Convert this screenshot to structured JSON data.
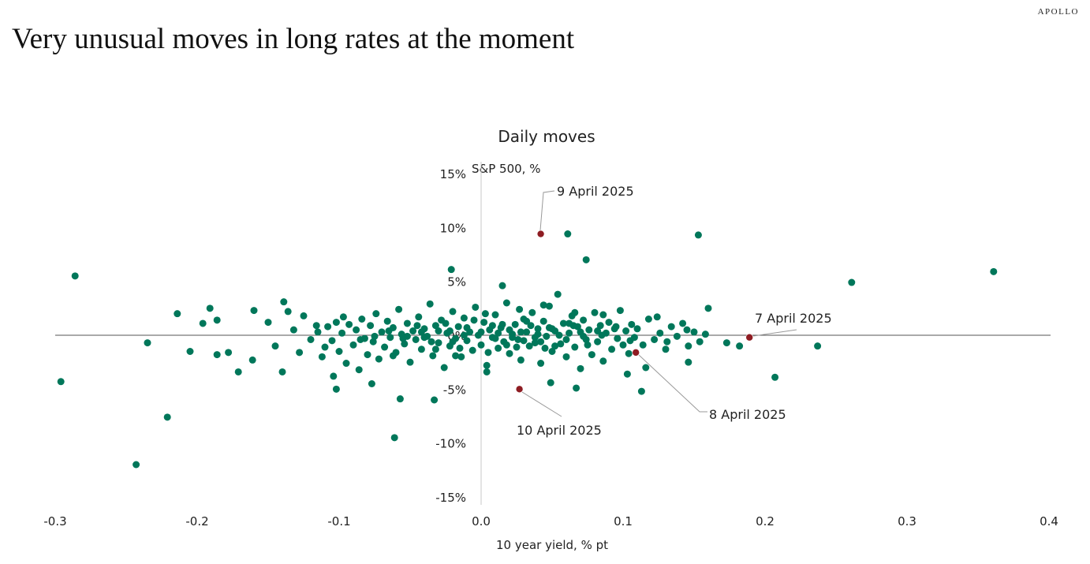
{
  "header": {
    "title": "Very unusual moves in long rates at the moment",
    "logo": "APOLLO"
  },
  "chart_data": {
    "type": "scatter",
    "title": "Daily moves",
    "xlabel": "10 year yield, % pt",
    "ylabel": "S&P 500, %",
    "xlim": [
      -0.3,
      0.4
    ],
    "ylim": [
      -15,
      15
    ],
    "x_ticks": [
      {
        "v": -0.3,
        "label": "-0.3"
      },
      {
        "v": -0.2,
        "label": "-0.2"
      },
      {
        "v": -0.1,
        "label": "-0.1"
      },
      {
        "v": 0.0,
        "label": "0.0"
      },
      {
        "v": 0.1,
        "label": "0.1"
      },
      {
        "v": 0.2,
        "label": "0.2"
      },
      {
        "v": 0.3,
        "label": "0.3"
      },
      {
        "v": 0.4,
        "label": "0.4"
      }
    ],
    "y_ticks": [
      {
        "v": 15,
        "label": "15%"
      },
      {
        "v": 10,
        "label": "10%"
      },
      {
        "v": 5,
        "label": "5%"
      },
      {
        "v": 0,
        "label": "0%"
      },
      {
        "v": -5,
        "label": "-5%"
      },
      {
        "v": -10,
        "label": "-10%"
      },
      {
        "v": -15,
        "label": "-15%"
      }
    ],
    "colors": {
      "point": "#00775a",
      "highlight": "#8e1c22",
      "axis": "#555555",
      "yaxis": "#c8c8c8"
    },
    "highlighted": [
      {
        "label": "9 April 2025",
        "x": 0.042,
        "y": 9.4
      },
      {
        "label": "10 April 2025",
        "x": 0.027,
        "y": -5.0
      },
      {
        "label": "8 April 2025",
        "x": 0.109,
        "y": -1.6
      },
      {
        "label": "7 April 2025",
        "x": 0.189,
        "y": -0.2
      }
    ],
    "points": [
      [
        -0.286,
        5.5
      ],
      [
        -0.296,
        -4.3
      ],
      [
        -0.243,
        -12.0
      ],
      [
        -0.221,
        -7.6
      ],
      [
        -0.235,
        -0.7
      ],
      [
        -0.214,
        2.0
      ],
      [
        -0.205,
        -1.5
      ],
      [
        -0.191,
        2.5
      ],
      [
        -0.196,
        1.1
      ],
      [
        -0.186,
        1.4
      ],
      [
        -0.186,
        -1.8
      ],
      [
        -0.178,
        -1.6
      ],
      [
        -0.171,
        -3.4
      ],
      [
        -0.16,
        2.3
      ],
      [
        -0.161,
        -2.3
      ],
      [
        -0.139,
        3.1
      ],
      [
        -0.136,
        2.2
      ],
      [
        -0.14,
        -3.4
      ],
      [
        -0.061,
        -9.5
      ],
      [
        -0.057,
        -5.9
      ],
      [
        -0.033,
        -6.0
      ],
      [
        -0.021,
        6.1
      ],
      [
        0.015,
        4.6
      ],
      [
        0.061,
        9.4
      ],
      [
        0.074,
        7.0
      ],
      [
        0.153,
        9.3
      ],
      [
        0.16,
        2.5
      ],
      [
        0.261,
        4.9
      ],
      [
        0.361,
        5.9
      ],
      [
        0.237,
        -1.0
      ],
      [
        0.207,
        -3.9
      ],
      [
        0.113,
        -5.2
      ],
      [
        0.067,
        -4.9
      ],
      [
        0.049,
        -4.4
      ],
      [
        0.182,
        -1.0
      ],
      [
        0.173,
        -0.7
      ],
      [
        0.146,
        -2.5
      ],
      [
        0.103,
        -3.6
      ],
      [
        0.116,
        -3.0
      ],
      [
        -0.077,
        -4.5
      ],
      [
        -0.102,
        -5.0
      ],
      [
        0.004,
        -3.4
      ],
      [
        -0.15,
        1.2
      ],
      [
        -0.145,
        -1.0
      ],
      [
        -0.132,
        0.5
      ],
      [
        -0.128,
        -1.6
      ],
      [
        -0.125,
        1.8
      ],
      [
        -0.12,
        -0.4
      ],
      [
        -0.116,
        0.9
      ],
      [
        -0.112,
        -2.0
      ],
      [
        -0.108,
        0.8
      ],
      [
        -0.105,
        -0.5
      ],
      [
        -0.102,
        1.2
      ],
      [
        -0.1,
        -1.5
      ],
      [
        -0.098,
        0.2
      ],
      [
        -0.095,
        -2.6
      ],
      [
        -0.093,
        1.0
      ],
      [
        -0.09,
        -0.9
      ],
      [
        -0.088,
        0.5
      ],
      [
        -0.086,
        -3.2
      ],
      [
        -0.084,
        1.5
      ],
      [
        -0.082,
        -0.3
      ],
      [
        -0.08,
        -1.8
      ],
      [
        -0.078,
        0.9
      ],
      [
        -0.076,
        -0.6
      ],
      [
        -0.074,
        2.0
      ],
      [
        -0.072,
        -2.2
      ],
      [
        -0.07,
        0.3
      ],
      [
        -0.068,
        -1.1
      ],
      [
        -0.066,
        1.3
      ],
      [
        -0.064,
        -0.2
      ],
      [
        -0.062,
        0.7
      ],
      [
        -0.06,
        -1.6
      ],
      [
        -0.058,
        2.4
      ],
      [
        -0.056,
        0.1
      ],
      [
        -0.054,
        -0.8
      ],
      [
        -0.052,
        1.1
      ],
      [
        -0.05,
        -2.5
      ],
      [
        -0.048,
        0.4
      ],
      [
        -0.046,
        -0.4
      ],
      [
        -0.044,
        1.7
      ],
      [
        -0.042,
        -1.3
      ],
      [
        -0.04,
        0.6
      ],
      [
        -0.038,
        -0.1
      ],
      [
        -0.036,
        2.9
      ],
      [
        -0.034,
        -1.9
      ],
      [
        -0.032,
        0.9
      ],
      [
        -0.03,
        -0.7
      ],
      [
        -0.028,
        1.4
      ],
      [
        -0.026,
        -3.0
      ],
      [
        -0.024,
        0.2
      ],
      [
        -0.022,
        -1.0
      ],
      [
        -0.02,
        2.2
      ],
      [
        -0.018,
        -0.3
      ],
      [
        -0.016,
        0.8
      ],
      [
        -0.014,
        -2.0
      ],
      [
        -0.012,
        1.6
      ],
      [
        -0.01,
        -0.5
      ],
      [
        -0.008,
        0.3
      ],
      [
        -0.006,
        -1.4
      ],
      [
        -0.004,
        2.6
      ],
      [
        -0.002,
        0.0
      ],
      [
        0.0,
        -0.9
      ],
      [
        0.002,
        1.2
      ],
      [
        0.004,
        -2.8
      ],
      [
        0.006,
        0.5
      ],
      [
        0.008,
        -0.2
      ],
      [
        0.01,
        1.9
      ],
      [
        0.012,
        -1.2
      ],
      [
        0.014,
        0.7
      ],
      [
        0.016,
        -0.6
      ],
      [
        0.018,
        3.0
      ],
      [
        0.02,
        -1.7
      ],
      [
        0.022,
        0.1
      ],
      [
        0.024,
        1.0
      ],
      [
        0.026,
        -0.4
      ],
      [
        0.028,
        -2.3
      ],
      [
        0.03,
        1.5
      ],
      [
        0.032,
        0.3
      ],
      [
        0.034,
        -1.0
      ],
      [
        0.036,
        2.1
      ],
      [
        0.038,
        -0.7
      ],
      [
        0.04,
        0.6
      ],
      [
        0.042,
        -2.6
      ],
      [
        0.044,
        1.3
      ],
      [
        0.046,
        -0.1
      ],
      [
        0.048,
        2.7
      ],
      [
        0.05,
        -1.5
      ],
      [
        0.052,
        0.4
      ],
      [
        0.054,
        3.8
      ],
      [
        0.056,
        -0.8
      ],
      [
        0.058,
        1.1
      ],
      [
        0.06,
        -2.0
      ],
      [
        0.062,
        0.2
      ],
      [
        0.064,
        1.8
      ],
      [
        0.066,
        -1.1
      ],
      [
        0.068,
        0.8
      ],
      [
        0.07,
        -3.1
      ],
      [
        0.072,
        1.4
      ],
      [
        0.074,
        -0.4
      ],
      [
        0.076,
        0.5
      ],
      [
        0.078,
        -1.8
      ],
      [
        0.08,
        2.1
      ],
      [
        0.082,
        -0.6
      ],
      [
        0.084,
        0.9
      ],
      [
        0.086,
        -2.4
      ],
      [
        0.088,
        0.2
      ],
      [
        0.09,
        1.2
      ],
      [
        0.092,
        -1.3
      ],
      [
        0.094,
        0.6
      ],
      [
        0.096,
        -0.3
      ],
      [
        0.098,
        2.3
      ],
      [
        0.1,
        -0.9
      ],
      [
        0.102,
        0.4
      ],
      [
        0.104,
        -1.7
      ],
      [
        0.106,
        1.0
      ],
      [
        0.108,
        -0.2
      ],
      [
        0.11,
        0.6
      ],
      [
        0.114,
        -0.9
      ],
      [
        0.118,
        1.5
      ],
      [
        0.122,
        -0.4
      ],
      [
        0.126,
        0.2
      ],
      [
        0.13,
        -1.3
      ],
      [
        0.134,
        0.8
      ],
      [
        0.138,
        -0.1
      ],
      [
        0.142,
        1.1
      ],
      [
        0.146,
        -1.0
      ],
      [
        0.15,
        0.3
      ],
      [
        0.154,
        -0.6
      ],
      [
        0.158,
        0.1
      ],
      [
        -0.04,
        -0.2
      ],
      [
        -0.03,
        0.4
      ],
      [
        -0.02,
        -0.6
      ],
      [
        -0.01,
        0.7
      ],
      [
        0.0,
        0.3
      ],
      [
        0.01,
        -0.3
      ],
      [
        0.02,
        0.5
      ],
      [
        0.03,
        -0.5
      ],
      [
        0.04,
        0.1
      ],
      [
        0.05,
        0.6
      ],
      [
        0.06,
        -0.4
      ],
      [
        0.07,
        0.3
      ],
      [
        0.015,
        1.0
      ],
      [
        0.025,
        -1.1
      ],
      [
        -0.015,
        -1.2
      ],
      [
        -0.025,
        1.1
      ],
      [
        0.005,
        -1.6
      ],
      [
        0.035,
        0.9
      ],
      [
        0.045,
        -1.2
      ],
      [
        0.055,
        0.0
      ],
      [
        -0.005,
        1.4
      ],
      [
        -0.035,
        -0.6
      ],
      [
        -0.045,
        0.9
      ],
      [
        -0.055,
        -0.3
      ],
      [
        -0.065,
        0.4
      ],
      [
        -0.075,
        -0.1
      ],
      [
        -0.085,
        -0.4
      ],
      [
        0.065,
        0.9
      ],
      [
        0.075,
        -0.9
      ],
      [
        0.085,
        0.0
      ],
      [
        0.095,
        0.8
      ],
      [
        0.105,
        -0.5
      ],
      [
        0.012,
        0.2
      ],
      [
        0.022,
        -0.2
      ],
      [
        0.032,
        1.3
      ],
      [
        0.042,
        -0.6
      ],
      [
        0.052,
        -1.0
      ],
      [
        0.062,
        1.1
      ],
      [
        0.072,
        -0.1
      ],
      [
        0.082,
        0.4
      ],
      [
        -0.012,
        0.0
      ],
      [
        -0.022,
        0.4
      ],
      [
        -0.032,
        -1.3
      ],
      [
        -0.042,
        0.3
      ],
      [
        -0.052,
        -0.1
      ],
      [
        0.008,
        0.9
      ],
      [
        0.018,
        -0.9
      ],
      [
        0.028,
        0.3
      ],
      [
        0.038,
        -0.2
      ],
      [
        0.048,
        0.7
      ],
      [
        -0.115,
        0.3
      ],
      [
        -0.11,
        -1.1
      ],
      [
        -0.104,
        -3.8
      ],
      [
        -0.097,
        1.7
      ],
      [
        -0.062,
        -1.9
      ],
      [
        -0.018,
        -1.9
      ],
      [
        0.003,
        2.0
      ],
      [
        0.027,
        2.4
      ],
      [
        0.044,
        2.8
      ],
      [
        0.066,
        2.1
      ],
      [
        0.086,
        1.9
      ],
      [
        0.124,
        1.7
      ],
      [
        0.131,
        -0.6
      ],
      [
        0.145,
        0.5
      ]
    ]
  }
}
